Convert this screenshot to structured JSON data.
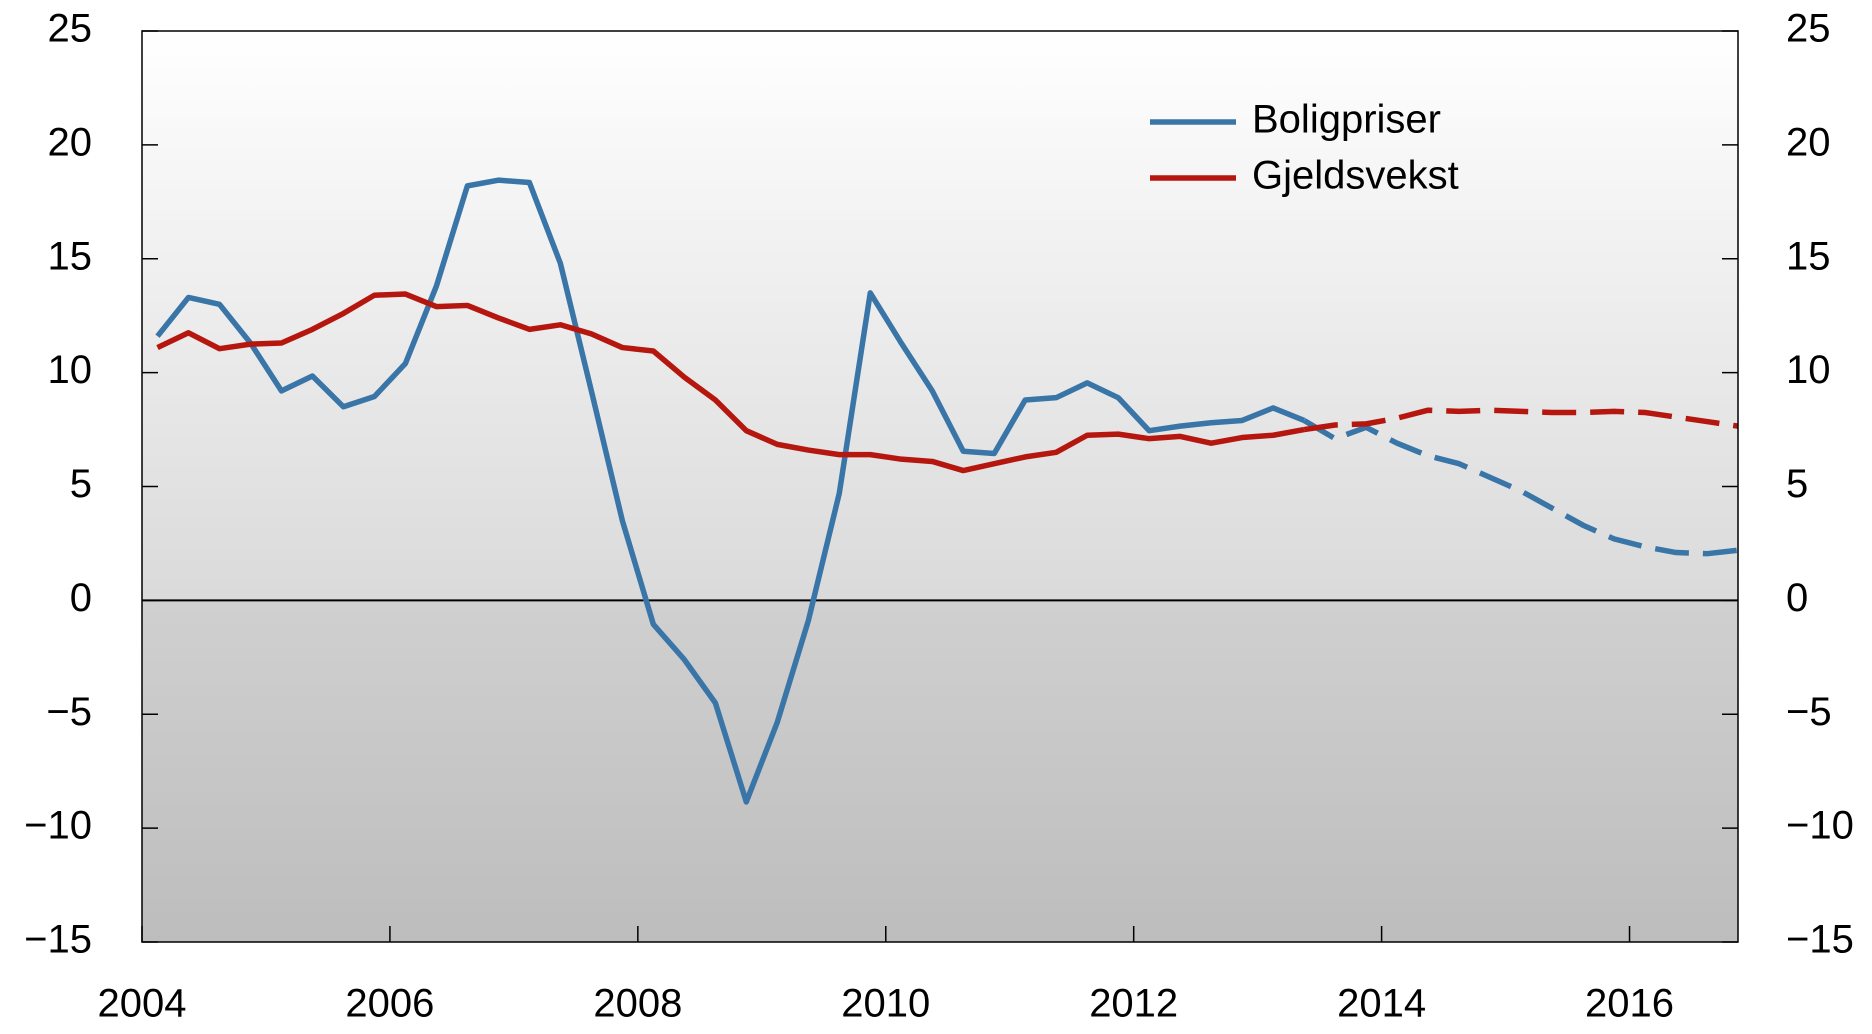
{
  "chart_data": {
    "type": "line",
    "x": [
      2004.125,
      2004.375,
      2004.625,
      2004.875,
      2005.125,
      2005.375,
      2005.625,
      2005.875,
      2006.125,
      2006.375,
      2006.625,
      2006.875,
      2007.125,
      2007.375,
      2007.625,
      2007.875,
      2008.125,
      2008.375,
      2008.625,
      2008.875,
      2009.125,
      2009.375,
      2009.625,
      2009.875,
      2010.125,
      2010.375,
      2010.625,
      2010.875,
      2011.125,
      2011.375,
      2011.625,
      2011.875,
      2012.125,
      2012.375,
      2012.625,
      2012.875,
      2013.125,
      2013.375,
      2013.625,
      2013.875,
      2014.125,
      2014.375,
      2014.625,
      2014.875,
      2015.125,
      2015.375,
      2015.625,
      2015.875,
      2016.125,
      2016.375,
      2016.625,
      2016.875
    ],
    "series": [
      {
        "name": "Boligpriser",
        "color": "#3a75a8",
        "values": [
          11.6,
          13.3,
          13.0,
          11.3,
          9.2,
          9.85,
          8.5,
          8.95,
          10.4,
          13.8,
          18.2,
          18.45,
          18.35,
          14.8,
          9.2,
          3.5,
          -1.05,
          -2.6,
          -4.5,
          -8.85,
          -5.35,
          -0.9,
          4.7,
          13.5,
          11.3,
          9.2,
          6.55,
          6.45,
          8.8,
          8.9,
          9.55,
          8.9,
          7.45,
          7.65,
          7.8,
          7.9,
          8.45,
          7.9,
          7.1,
          7.6,
          6.9,
          6.35,
          6.0,
          5.4,
          4.8,
          4.05,
          3.3,
          2.7,
          2.35,
          2.1,
          2.05,
          2.2
        ]
      },
      {
        "name": "Gjeldsvekst",
        "color": "#b5170f",
        "values": [
          11.1,
          11.75,
          11.05,
          11.25,
          11.3,
          11.9,
          12.6,
          13.4,
          13.45,
          12.9,
          12.95,
          12.4,
          11.9,
          12.1,
          11.7,
          11.1,
          10.95,
          9.8,
          8.8,
          7.45,
          6.85,
          6.6,
          6.4,
          6.4,
          6.2,
          6.1,
          5.7,
          6.0,
          6.3,
          6.5,
          7.25,
          7.3,
          7.1,
          7.2,
          6.9,
          7.15,
          7.25,
          7.5,
          7.7,
          7.75,
          8.0,
          8.35,
          8.3,
          8.35,
          8.3,
          8.25,
          8.25,
          8.3,
          8.25,
          8.05,
          7.85,
          7.65
        ]
      }
    ],
    "forecast_from": 2013.375,
    "xlim": [
      2004,
      2016.875
    ],
    "xticks": [
      2004,
      2006,
      2008,
      2010,
      2012,
      2014,
      2016
    ],
    "ylim": [
      -15,
      25
    ],
    "yticks": [
      {
        "value": -15,
        "label": "−15"
      },
      {
        "value": -10,
        "label": "−10"
      },
      {
        "value": -5,
        "label": "−5"
      },
      0,
      5,
      10,
      15,
      20,
      25
    ],
    "y2lim": [
      -15,
      25
    ],
    "legend": "upper right"
  }
}
